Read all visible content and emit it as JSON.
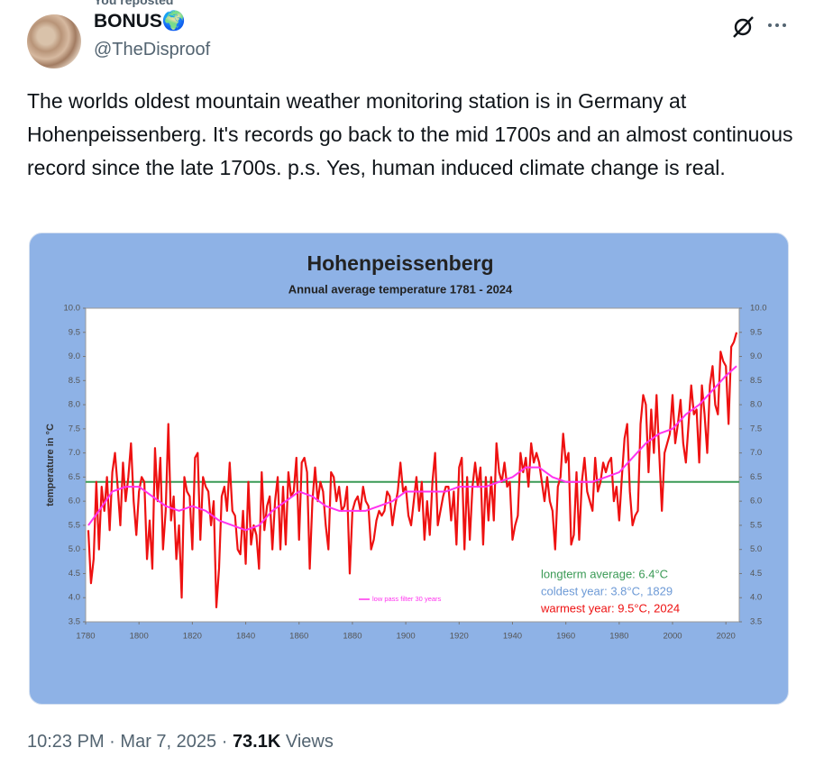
{
  "header": {
    "reposted": "You reposted",
    "name": "BONUS🌍",
    "handle": "@TheDisproof"
  },
  "body": "The worlds oldest mountain weather monitoring station is in Germany at Hohenpeissenberg. It's records go back to the mid 1700s and an almost continuous record since the late 1700s. p.s. Yes, human induced climate change is real.",
  "footer": {
    "time": "10:23 PM",
    "separator": "·",
    "date": "Mar 7, 2025",
    "views": "73.1K",
    "views_label": "Views"
  },
  "chart_data": {
    "type": "line",
    "title": "Hohenpeissenberg",
    "subtitle": "Annual average temperature 1781 - 2024",
    "y_label": "temperature in °C",
    "xlim": [
      1780,
      2025
    ],
    "xticks": [
      1780,
      1800,
      1820,
      1840,
      1860,
      1880,
      1900,
      1920,
      1940,
      1960,
      1980,
      2000,
      2020
    ],
    "ylim": [
      3.5,
      10
    ],
    "yticks": [
      3.5,
      {
        "value": 4,
        "label": "4.0"
      },
      4.5,
      {
        "value": 5,
        "label": "5.0"
      },
      5.5,
      {
        "value": 6,
        "label": "6.0"
      },
      6.5,
      {
        "value": 7,
        "label": "7.0"
      },
      7.5,
      {
        "value": 8,
        "label": "8.0"
      },
      8.5,
      {
        "value": 9,
        "label": "9.0"
      },
      9.5,
      {
        "value": 10,
        "label": "10.0"
      }
    ],
    "reference_line": {
      "value": 6.4,
      "color": "#3a9a55"
    },
    "series": [
      {
        "color": "#ee1111",
        "x": [
          1781,
          1782,
          1783,
          1784,
          1785,
          1786,
          1787,
          1788,
          1789,
          1790,
          1791,
          1792,
          1793,
          1794,
          1795,
          1796,
          1797,
          1798,
          1799,
          1800,
          1801,
          1802,
          1803,
          1804,
          1805,
          1806,
          1807,
          1808,
          1809,
          1810,
          1811,
          1812,
          1813,
          1814,
          1815,
          1816,
          1817,
          1818,
          1819,
          1820,
          1821,
          1822,
          1823,
          1824,
          1825,
          1826,
          1827,
          1828,
          1829,
          1830,
          1831,
          1832,
          1833,
          1834,
          1835,
          1836,
          1837,
          1838,
          1839,
          1840,
          1841,
          1842,
          1843,
          1844,
          1845,
          1846,
          1847,
          1848,
          1849,
          1850,
          1851,
          1852,
          1853,
          1854,
          1855,
          1856,
          1857,
          1858,
          1859,
          1860,
          1861,
          1862,
          1863,
          1864,
          1865,
          1866,
          1867,
          1868,
          1869,
          1870,
          1871,
          1872,
          1873,
          1874,
          1875,
          1876,
          1877,
          1878,
          1879,
          1880,
          1881,
          1882,
          1883,
          1884,
          1885,
          1886,
          1887,
          1888,
          1889,
          1890,
          1891,
          1892,
          1893,
          1894,
          1895,
          1896,
          1897,
          1898,
          1899,
          1900,
          1901,
          1902,
          1903,
          1904,
          1905,
          1906,
          1907,
          1908,
          1909,
          1910,
          1911,
          1912,
          1913,
          1914,
          1915,
          1916,
          1917,
          1918,
          1919,
          1920,
          1921,
          1922,
          1923,
          1924,
          1925,
          1926,
          1927,
          1928,
          1929,
          1930,
          1931,
          1932,
          1933,
          1934,
          1935,
          1936,
          1937,
          1938,
          1939,
          1940,
          1941,
          1942,
          1943,
          1944,
          1945,
          1946,
          1947,
          1948,
          1949,
          1950,
          1951,
          1952,
          1953,
          1954,
          1955,
          1956,
          1957,
          1958,
          1959,
          1960,
          1961,
          1962,
          1963,
          1964,
          1965,
          1966,
          1967,
          1968,
          1969,
          1970,
          1971,
          1972,
          1973,
          1974,
          1975,
          1976,
          1977,
          1978,
          1979,
          1980,
          1981,
          1982,
          1983,
          1984,
          1985,
          1986,
          1987,
          1988,
          1989,
          1990,
          1991,
          1992,
          1993,
          1994,
          1995,
          1996,
          1997,
          1998,
          1999,
          2000,
          2001,
          2002,
          2003,
          2004,
          2005,
          2006,
          2007,
          2008,
          2009,
          2010,
          2011,
          2012,
          2013,
          2014,
          2015,
          2016,
          2017,
          2018,
          2019,
          2020,
          2021,
          2022,
          2023,
          2024
        ],
        "values": [
          5.4,
          4.3,
          4.8,
          6.4,
          5.0,
          6.3,
          5.8,
          6.5,
          5.4,
          6.6,
          7.0,
          6.3,
          5.5,
          6.8,
          6.0,
          6.5,
          7.2,
          6.0,
          5.3,
          6.2,
          6.5,
          6.4,
          4.8,
          5.6,
          4.6,
          7.1,
          6.0,
          6.9,
          5.0,
          5.8,
          7.6,
          5.6,
          6.1,
          4.8,
          5.5,
          4.0,
          6.5,
          6.2,
          6.1,
          5.0,
          6.9,
          7.0,
          5.2,
          6.5,
          6.3,
          6.2,
          5.5,
          6.0,
          3.8,
          4.6,
          6.1,
          6.3,
          5.8,
          6.8,
          5.8,
          5.7,
          5.0,
          4.9,
          5.8,
          4.7,
          6.4,
          5.1,
          5.5,
          5.3,
          4.6,
          6.6,
          5.4,
          5.9,
          6.1,
          5.0,
          6.0,
          6.5,
          5.0,
          6.3,
          5.1,
          6.6,
          6.1,
          6.2,
          6.9,
          5.2,
          6.8,
          6.9,
          6.6,
          4.6,
          6.0,
          6.7,
          6.0,
          6.4,
          6.2,
          5.5,
          5.0,
          6.6,
          6.5,
          6.0,
          6.3,
          5.8,
          5.9,
          6.3,
          4.5,
          5.8,
          6.0,
          6.1,
          5.8,
          6.3,
          6.0,
          5.9,
          5.0,
          5.2,
          5.6,
          5.8,
          5.7,
          5.8,
          6.2,
          6.1,
          5.5,
          5.9,
          6.2,
          6.8,
          6.2,
          6.3,
          5.7,
          5.5,
          6.0,
          6.5,
          5.8,
          6.4,
          5.2,
          6.0,
          5.3,
          6.4,
          7.0,
          5.5,
          5.8,
          6.1,
          6.3,
          6.3,
          5.6,
          6.2,
          5.1,
          6.7,
          6.9,
          5.0,
          6.5,
          5.2,
          6.3,
          6.8,
          6.3,
          6.7,
          5.1,
          6.5,
          5.6,
          6.5,
          5.6,
          7.2,
          6.6,
          6.4,
          6.8,
          6.3,
          6.4,
          5.2,
          5.5,
          5.7,
          7.0,
          6.6,
          6.9,
          6.3,
          7.2,
          6.8,
          7.0,
          6.8,
          6.4,
          6.0,
          6.5,
          6.0,
          5.8,
          5.0,
          6.3,
          6.5,
          7.4,
          6.8,
          7.0,
          5.1,
          5.3,
          6.6,
          5.2,
          6.4,
          6.9,
          6.2,
          6.0,
          5.8,
          6.9,
          6.2,
          6.4,
          6.8,
          6.6,
          6.8,
          6.9,
          6.0,
          6.3,
          5.6,
          6.5,
          7.3,
          7.6,
          6.2,
          5.5,
          5.7,
          5.8,
          7.6,
          8.2,
          8.0,
          6.6,
          7.9,
          7.0,
          8.2,
          7.0,
          5.8,
          7.0,
          7.2,
          7.4,
          8.2,
          7.2,
          7.6,
          8.1,
          7.2,
          6.8,
          7.6,
          8.4,
          7.8,
          7.9,
          6.8,
          8.4,
          7.8,
          7.0,
          8.4,
          8.8,
          8.0,
          7.8,
          9.1,
          8.9,
          8.8,
          7.6,
          9.2,
          9.3,
          9.5
        ]
      },
      {
        "name": "low pass filter 30 years",
        "color": "#ff33ee",
        "x": [
          1781,
          1785,
          1790,
          1795,
          1800,
          1805,
          1810,
          1815,
          1820,
          1825,
          1830,
          1835,
          1840,
          1845,
          1850,
          1855,
          1860,
          1865,
          1870,
          1875,
          1880,
          1885,
          1890,
          1895,
          1900,
          1905,
          1910,
          1915,
          1920,
          1925,
          1930,
          1935,
          1940,
          1945,
          1950,
          1955,
          1960,
          1965,
          1970,
          1975,
          1980,
          1985,
          1990,
          1995,
          2000,
          2005,
          2010,
          2015,
          2020,
          2024
        ],
        "values": [
          5.5,
          5.8,
          6.2,
          6.3,
          6.3,
          6.1,
          5.9,
          5.8,
          5.9,
          5.8,
          5.6,
          5.5,
          5.4,
          5.5,
          5.8,
          6.0,
          6.2,
          6.1,
          5.9,
          5.8,
          5.8,
          5.8,
          5.9,
          6.0,
          6.2,
          6.2,
          6.2,
          6.2,
          6.3,
          6.3,
          6.3,
          6.4,
          6.5,
          6.7,
          6.7,
          6.5,
          6.4,
          6.4,
          6.4,
          6.5,
          6.6,
          6.9,
          7.2,
          7.4,
          7.5,
          7.8,
          8.0,
          8.3,
          8.6,
          8.8
        ]
      }
    ],
    "annotations": [
      {
        "text": "longterm average: 6.4°C",
        "color": "#3a9a55"
      },
      {
        "text": "coldest year: 3.8°C, 1829",
        "color": "#6d9ad6"
      },
      {
        "text": "warmest year: 9.5°C, 2024",
        "color": "#ee1111"
      }
    ]
  }
}
